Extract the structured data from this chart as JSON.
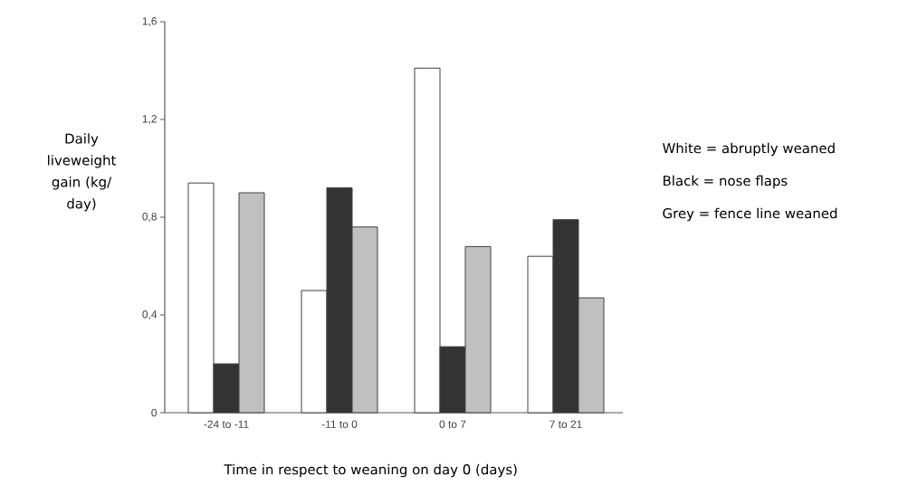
{
  "chart_data": {
    "type": "bar",
    "categories": [
      "-24 to -11",
      "-11 to 0",
      "0 to 7",
      "7 to 21"
    ],
    "series": [
      {
        "color": "#ffffff",
        "values": [
          0.94,
          0.5,
          1.41,
          0.64
        ]
      },
      {
        "color": "#333333",
        "values": [
          0.2,
          0.92,
          0.27,
          0.79
        ]
      },
      {
        "color": "#c0c0c0",
        "values": [
          0.9,
          0.76,
          0.68,
          0.47
        ]
      }
    ],
    "ylim": [
      0,
      1.6
    ],
    "yticks": [
      {
        "value": 0,
        "label": "0"
      },
      {
        "value": 0.4,
        "label": "0,4"
      },
      {
        "value": 0.8,
        "label": "0,8"
      },
      {
        "value": 1.2,
        "label": "1,2"
      },
      {
        "value": 1.6,
        "label": "1,6"
      }
    ],
    "xlabel": "Time in respect to weaning on day 0 (days)",
    "ylabel": "Daily liveweight gain (kg/ day)",
    "annotations": [
      "White = abruptly weaned",
      "Black = nose flaps",
      "Grey = fence line weaned"
    ],
    "grid": false
  }
}
